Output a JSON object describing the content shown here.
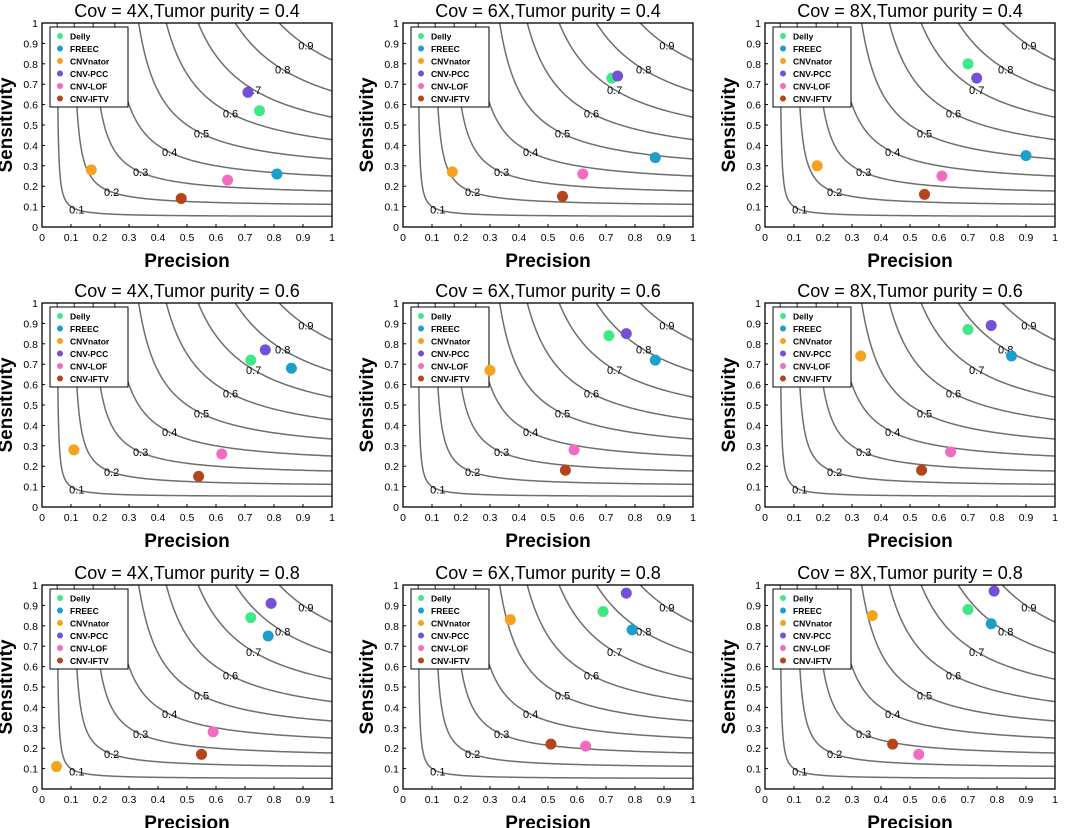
{
  "figure": {
    "xlabel": "Precision",
    "ylabel": "Sensitivity",
    "legend": [
      "Delly",
      "FREEC",
      "CNVnator",
      "CNV-PCC",
      "CNV-LOF",
      "CNV-IFTV"
    ],
    "colors": {
      "Delly": "#3ee885",
      "FREEC": "#1b9fcb",
      "CNVnator": "#f5a31d",
      "CNV-PCC": "#7450d8",
      "CNV-LOF": "#f26bc1",
      "CNV-IFTV": "#b5441d",
      "contour": "#6e6e6e"
    },
    "tick_labels": [
      "0",
      "0.1",
      "0.2",
      "0.3",
      "0.4",
      "0.5",
      "0.6",
      "0.7",
      "0.8",
      "0.9",
      "1"
    ],
    "contour_levels": [
      0.1,
      0.2,
      0.3,
      0.4,
      0.5,
      0.6,
      0.7,
      0.8,
      0.9
    ],
    "contour_labels": [
      "0.1",
      "0.2",
      "0.3",
      "0.4",
      "0.5",
      "0.6",
      "0.7",
      "0.8",
      "0.9"
    ]
  },
  "chart_data": [
    {
      "type": "scatter",
      "title": "Cov = 4X,Tumor purity = 0.4",
      "xlabel": "Precision",
      "ylabel": "Sensitivity",
      "xlim": [
        0,
        1
      ],
      "ylim": [
        0,
        1
      ],
      "legend_position": "top-left",
      "points": [
        {
          "name": "Delly",
          "x": 0.75,
          "y": 0.57
        },
        {
          "name": "FREEC",
          "x": 0.81,
          "y": 0.26
        },
        {
          "name": "CNVnator",
          "x": 0.17,
          "y": 0.28
        },
        {
          "name": "CNV-PCC",
          "x": 0.71,
          "y": 0.66
        },
        {
          "name": "CNV-LOF",
          "x": 0.64,
          "y": 0.23
        },
        {
          "name": "CNV-IFTV",
          "x": 0.48,
          "y": 0.14
        }
      ]
    },
    {
      "type": "scatter",
      "title": "Cov = 6X,Tumor purity = 0.4",
      "xlabel": "Precision",
      "ylabel": "Sensitivity",
      "xlim": [
        0,
        1
      ],
      "ylim": [
        0,
        1
      ],
      "legend_position": "top-left",
      "points": [
        {
          "name": "Delly",
          "x": 0.72,
          "y": 0.73
        },
        {
          "name": "FREEC",
          "x": 0.87,
          "y": 0.34
        },
        {
          "name": "CNVnator",
          "x": 0.17,
          "y": 0.27
        },
        {
          "name": "CNV-PCC",
          "x": 0.74,
          "y": 0.74
        },
        {
          "name": "CNV-LOF",
          "x": 0.62,
          "y": 0.26
        },
        {
          "name": "CNV-IFTV",
          "x": 0.55,
          "y": 0.15
        }
      ]
    },
    {
      "type": "scatter",
      "title": "Cov = 8X,Tumor purity = 0.4",
      "xlabel": "Precision",
      "ylabel": "Sensitivity",
      "xlim": [
        0,
        1
      ],
      "ylim": [
        0,
        1
      ],
      "legend_position": "top-left",
      "points": [
        {
          "name": "Delly",
          "x": 0.7,
          "y": 0.8
        },
        {
          "name": "FREEC",
          "x": 0.9,
          "y": 0.35
        },
        {
          "name": "CNVnator",
          "x": 0.18,
          "y": 0.3
        },
        {
          "name": "CNV-PCC",
          "x": 0.73,
          "y": 0.73
        },
        {
          "name": "CNV-LOF",
          "x": 0.61,
          "y": 0.25
        },
        {
          "name": "CNV-IFTV",
          "x": 0.55,
          "y": 0.16
        }
      ]
    },
    {
      "type": "scatter",
      "title": "Cov = 4X,Tumor purity = 0.6",
      "xlabel": "Precision",
      "ylabel": "Sensitivity",
      "xlim": [
        0,
        1
      ],
      "ylim": [
        0,
        1
      ],
      "legend_position": "top-left",
      "points": [
        {
          "name": "Delly",
          "x": 0.72,
          "y": 0.72
        },
        {
          "name": "FREEC",
          "x": 0.86,
          "y": 0.68
        },
        {
          "name": "CNVnator",
          "x": 0.11,
          "y": 0.28
        },
        {
          "name": "CNV-PCC",
          "x": 0.77,
          "y": 0.77
        },
        {
          "name": "CNV-LOF",
          "x": 0.62,
          "y": 0.26
        },
        {
          "name": "CNV-IFTV",
          "x": 0.54,
          "y": 0.15
        }
      ]
    },
    {
      "type": "scatter",
      "title": "Cov = 6X,Tumor purity = 0.6",
      "xlabel": "Precision",
      "ylabel": "Sensitivity",
      "xlim": [
        0,
        1
      ],
      "ylim": [
        0,
        1
      ],
      "legend_position": "top-left",
      "points": [
        {
          "name": "Delly",
          "x": 0.71,
          "y": 0.84
        },
        {
          "name": "FREEC",
          "x": 0.87,
          "y": 0.72
        },
        {
          "name": "CNVnator",
          "x": 0.3,
          "y": 0.67
        },
        {
          "name": "CNV-PCC",
          "x": 0.77,
          "y": 0.85
        },
        {
          "name": "CNV-LOF",
          "x": 0.59,
          "y": 0.28
        },
        {
          "name": "CNV-IFTV",
          "x": 0.56,
          "y": 0.18
        }
      ]
    },
    {
      "type": "scatter",
      "title": "Cov = 8X,Tumor purity = 0.6",
      "xlabel": "Precision",
      "ylabel": "Sensitivity",
      "xlim": [
        0,
        1
      ],
      "ylim": [
        0,
        1
      ],
      "legend_position": "top-left",
      "points": [
        {
          "name": "Delly",
          "x": 0.7,
          "y": 0.87
        },
        {
          "name": "FREEC",
          "x": 0.85,
          "y": 0.74
        },
        {
          "name": "CNVnator",
          "x": 0.33,
          "y": 0.74
        },
        {
          "name": "CNV-PCC",
          "x": 0.78,
          "y": 0.89
        },
        {
          "name": "CNV-LOF",
          "x": 0.64,
          "y": 0.27
        },
        {
          "name": "CNV-IFTV",
          "x": 0.54,
          "y": 0.18
        }
      ]
    },
    {
      "type": "scatter",
      "title": "Cov = 4X,Tumor purity = 0.8",
      "xlabel": "Precision",
      "ylabel": "Sensitivity",
      "xlim": [
        0,
        1
      ],
      "ylim": [
        0,
        1
      ],
      "legend_position": "top-left",
      "points": [
        {
          "name": "Delly",
          "x": 0.72,
          "y": 0.84
        },
        {
          "name": "FREEC",
          "x": 0.78,
          "y": 0.75
        },
        {
          "name": "CNVnator",
          "x": 0.05,
          "y": 0.11
        },
        {
          "name": "CNV-PCC",
          "x": 0.79,
          "y": 0.91
        },
        {
          "name": "CNV-LOF",
          "x": 0.59,
          "y": 0.28
        },
        {
          "name": "CNV-IFTV",
          "x": 0.55,
          "y": 0.17
        }
      ]
    },
    {
      "type": "scatter",
      "title": "Cov = 6X,Tumor purity = 0.8",
      "xlabel": "Precision",
      "ylabel": "Sensitivity",
      "xlim": [
        0,
        1
      ],
      "ylim": [
        0,
        1
      ],
      "legend_position": "top-left",
      "points": [
        {
          "name": "Delly",
          "x": 0.69,
          "y": 0.87
        },
        {
          "name": "FREEC",
          "x": 0.79,
          "y": 0.78
        },
        {
          "name": "CNVnator",
          "x": 0.37,
          "y": 0.83
        },
        {
          "name": "CNV-PCC",
          "x": 0.77,
          "y": 0.96
        },
        {
          "name": "CNV-LOF",
          "x": 0.63,
          "y": 0.21
        },
        {
          "name": "CNV-IFTV",
          "x": 0.51,
          "y": 0.22
        }
      ]
    },
    {
      "type": "scatter",
      "title": "Cov = 8X,Tumor purity = 0.8",
      "xlabel": "Precision",
      "ylabel": "Sensitivity",
      "xlim": [
        0,
        1
      ],
      "ylim": [
        0,
        1
      ],
      "legend_position": "top-left",
      "points": [
        {
          "name": "Delly",
          "x": 0.7,
          "y": 0.88
        },
        {
          "name": "FREEC",
          "x": 0.78,
          "y": 0.81
        },
        {
          "name": "CNVnator",
          "x": 0.37,
          "y": 0.85
        },
        {
          "name": "CNV-PCC",
          "x": 0.79,
          "y": 0.97
        },
        {
          "name": "CNV-LOF",
          "x": 0.53,
          "y": 0.17
        },
        {
          "name": "CNV-IFTV",
          "x": 0.44,
          "y": 0.22
        }
      ]
    }
  ]
}
